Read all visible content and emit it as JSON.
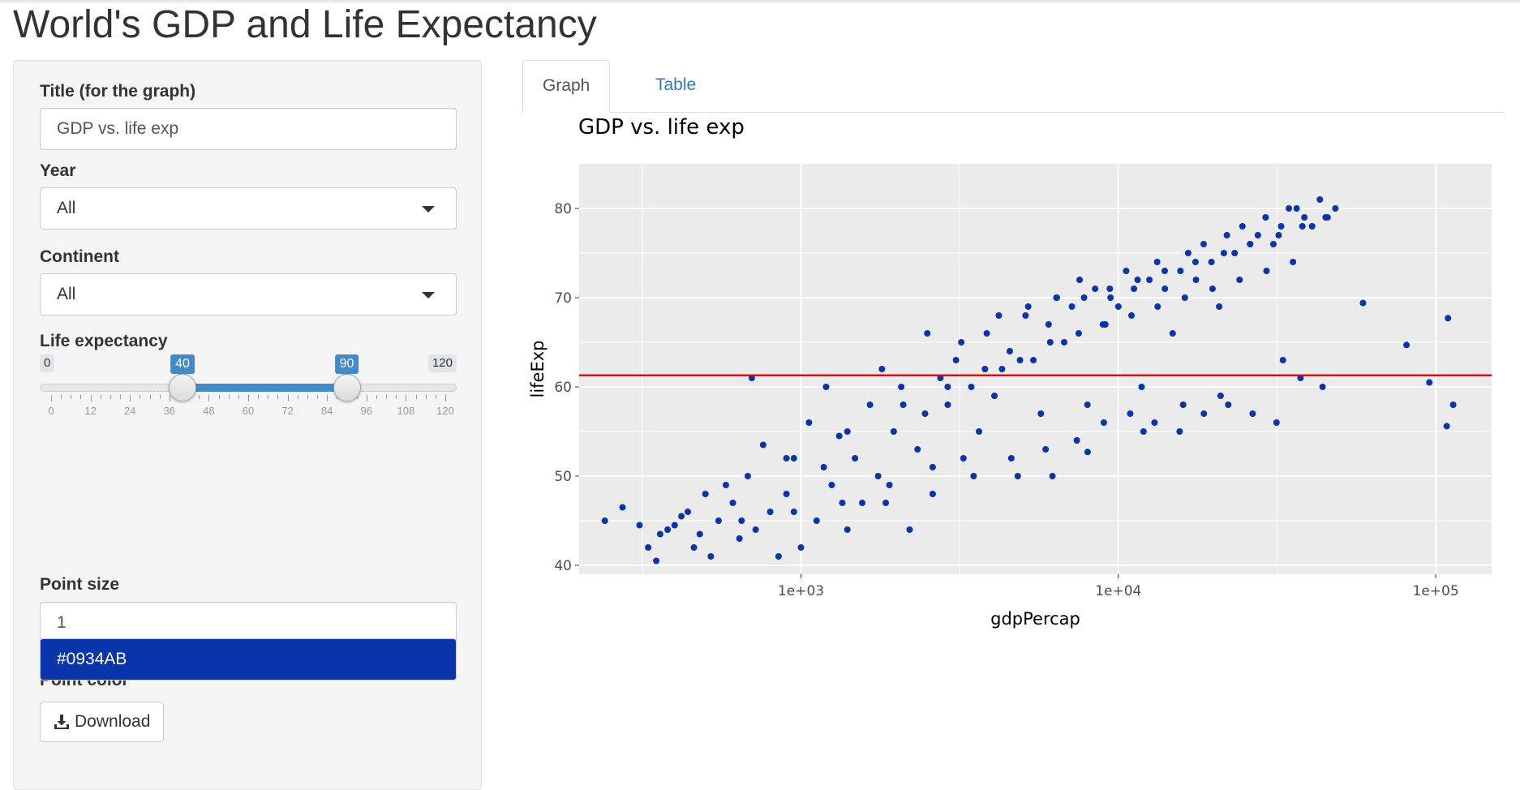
{
  "app_title": "World's GDP and Life Expectancy",
  "sidebar": {
    "title_label": "Title (for the graph)",
    "title_value": "GDP vs. life exp",
    "year_label": "Year",
    "year_value": "All",
    "continent_label": "Continent",
    "continent_value": "All",
    "life_label": "Life expectancy",
    "life_slider": {
      "min": 0,
      "max": 120,
      "low": 40,
      "high": 90,
      "min_label": "0",
      "max_label": "120",
      "low_label": "40",
      "high_label": "90",
      "tick_labels": [
        "0",
        "12",
        "24",
        "36",
        "48",
        "60",
        "72",
        "84",
        "96",
        "108",
        "120"
      ]
    },
    "point_size_label": "Point size",
    "point_size_value": "1",
    "point_color_label": "Point color",
    "point_color_value": "#0934AB",
    "download_label": "Download"
  },
  "tabs": [
    {
      "label": "Graph",
      "active": true
    },
    {
      "label": "Table",
      "active": false
    }
  ],
  "colors": {
    "point": "#0934AB",
    "reference_line": "#FF0000",
    "panel_bg": "#EBEBEB",
    "link": "#337AB7",
    "slider_accent": "#428BCA"
  },
  "icons": {
    "download": "download-icon",
    "dropdown": "caret-down-icon"
  },
  "chart_data": {
    "type": "scatter",
    "title": "GDP vs. life exp",
    "xlabel": "gdpPercap",
    "ylabel": "lifeExp",
    "x_scale": "log10",
    "xlim": [
      200,
      150000
    ],
    "ylim": [
      39,
      85
    ],
    "x_ticks": [
      1000,
      10000,
      100000
    ],
    "x_tick_labels": [
      "1e+03",
      "1e+04",
      "1e+05"
    ],
    "y_ticks": [
      40,
      50,
      60,
      70,
      80
    ],
    "y_tick_labels": [
      "40",
      "50",
      "60",
      "70",
      "80"
    ],
    "grid": true,
    "hline": 61.3,
    "series": [
      {
        "x": [
          241,
          274,
          310,
          330,
          350,
          360,
          380,
          400,
          420,
          440,
          460,
          480,
          500,
          520,
          550,
          580,
          610,
          640,
          680,
          720,
          760,
          800,
          850,
          900,
          950,
          1000,
          1060,
          1120,
          1180,
          1250,
          1320,
          1400,
          1480,
          1560,
          1650,
          1750,
          1850,
          1960,
          2070,
          2200,
          2330,
          2460,
          2600,
          2750,
          2900,
          3080,
          3250,
          3440,
          3640,
          3850,
          4070,
          4300,
          4550,
          4820,
          5100,
          5400,
          5700,
          6030,
          6380,
          6750,
          7140,
          7550,
          7990,
          8450,
          8940,
          9450,
          10000,
          10580,
          11200,
          11840,
          12530,
          13250,
          14020,
          14830,
          15690,
          16600,
          17560,
          18570,
          19650,
          20780,
          21980,
          23250,
          24600,
          26020,
          27520,
          29110,
          30800,
          32580,
          34460,
          36450,
          38560,
          40790,
          43150,
          45640,
          48280,
          59000,
          80900,
          95500,
          109300,
          113500,
          108300,
          700,
          1200,
          1800,
          2500,
          3200,
          4200,
          5200,
          6400,
          7800,
          9400,
          11500,
          14000,
          17500,
          21500,
          26000,
          32000,
          38000,
          45000,
          900,
          1400,
          2100,
          2900,
          3800,
          4900,
          6100,
          7500,
          9100,
          11000,
          13300,
          16200,
          19800,
          24100,
          29300,
          35500,
          650,
          950,
          1350,
          1900,
          2600,
          3500,
          4600,
          5900,
          7400,
          9000,
          10900,
          13000,
          15600,
          18600,
          22200,
          26500,
          31500,
          37500,
          44000,
          33000,
          21000,
          16000,
          12000,
          8000,
          6200
        ],
        "y": [
          45,
          46.5,
          44.5,
          42,
          40.5,
          43.5,
          44,
          44.5,
          45.5,
          46,
          42,
          43.5,
          48,
          41,
          45,
          49,
          47,
          43,
          50,
          44,
          53.5,
          46,
          41,
          48,
          52,
          42,
          56,
          45,
          51,
          49,
          54.5,
          44,
          52,
          47,
          58,
          50,
          47,
          55,
          60,
          44,
          53,
          57,
          48,
          61,
          58,
          63,
          52,
          60,
          55,
          66,
          59,
          62,
          64,
          50,
          68,
          63,
          57,
          67,
          70,
          65,
          69,
          72,
          58,
          71,
          67,
          70,
          69,
          73,
          71,
          60,
          72,
          74,
          71,
          66,
          73,
          75,
          72,
          76,
          74,
          69,
          77,
          75,
          78,
          76,
          77,
          79,
          76,
          78,
          80,
          80,
          79,
          78,
          81,
          79,
          80,
          69.4,
          64.7,
          60.5,
          67.7,
          58,
          55.6,
          61,
          60,
          62,
          66,
          65,
          68,
          69,
          70,
          70,
          71,
          72,
          73,
          74,
          75,
          76,
          77,
          78,
          79,
          52,
          55,
          58,
          60,
          62,
          63,
          65,
          66,
          67,
          68,
          69,
          70,
          71,
          72,
          73,
          74,
          45,
          46,
          47,
          49,
          51,
          50,
          52,
          53,
          54,
          56,
          57,
          56,
          55,
          57,
          58,
          57,
          56,
          61,
          60,
          63,
          59,
          58,
          55,
          52.7,
          50
        ]
      }
    ]
  }
}
